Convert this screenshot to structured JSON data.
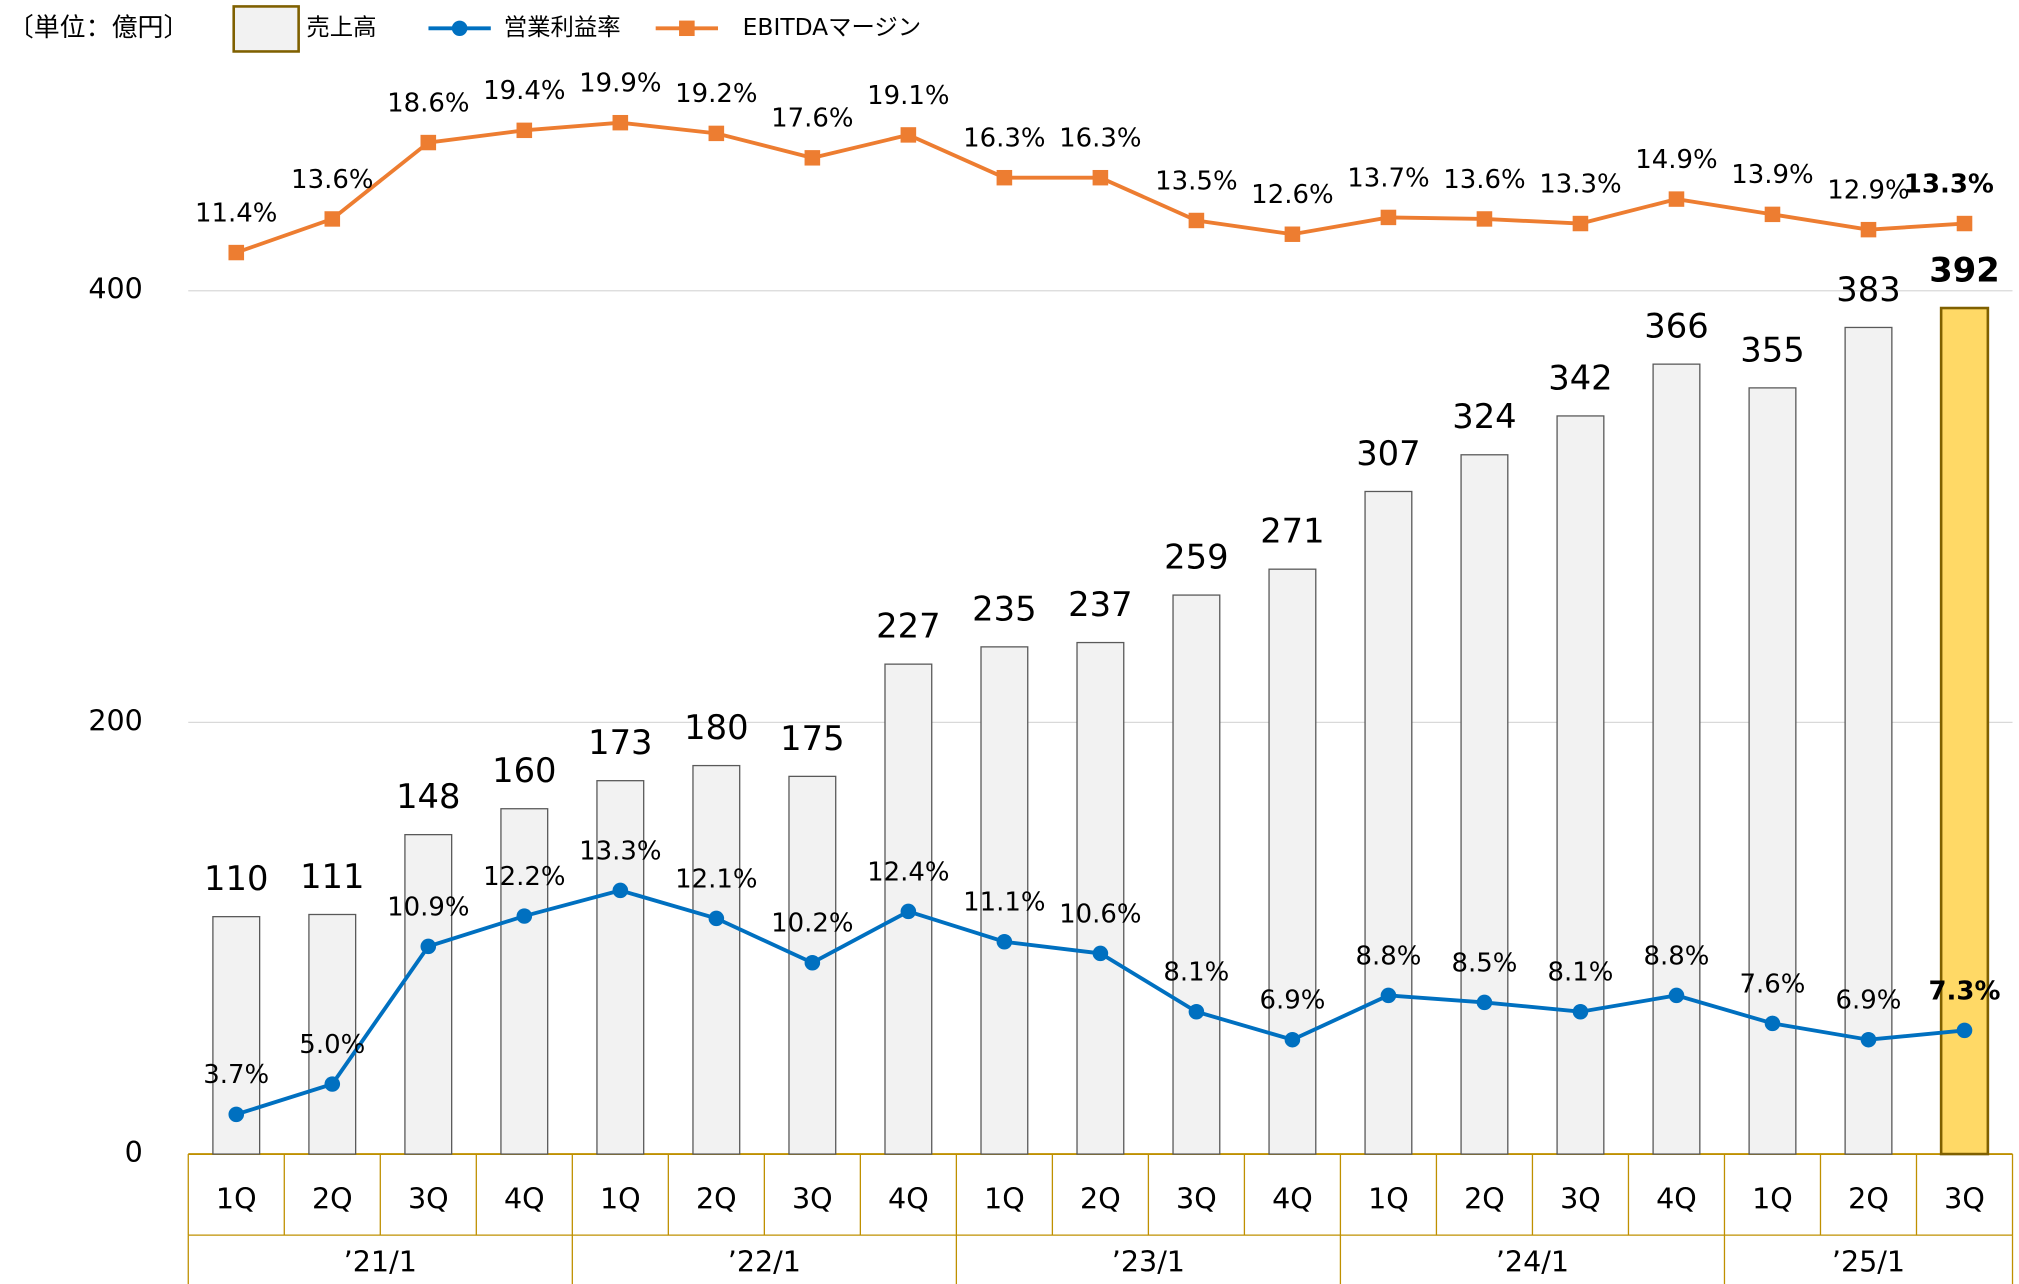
{
  "chart_data": {
    "type": "bar",
    "unit_label": "〔単位：億円〕",
    "categories": [
      "1Q",
      "2Q",
      "3Q",
      "4Q",
      "1Q",
      "2Q",
      "3Q",
      "4Q",
      "1Q",
      "2Q",
      "3Q",
      "4Q",
      "1Q",
      "2Q",
      "3Q",
      "4Q",
      "1Q",
      "2Q",
      "3Q"
    ],
    "groups": [
      {
        "label": "’21/1",
        "span": 4
      },
      {
        "label": "’22/1",
        "span": 4
      },
      {
        "label": "’23/1",
        "span": 4
      },
      {
        "label": "’24/1",
        "span": 4
      },
      {
        "label": "’25/1",
        "span": 3
      }
    ],
    "ylim": [
      0,
      400
    ],
    "yticks": [
      0,
      200,
      400
    ],
    "grid": true,
    "y2lim": [
      2,
      39
    ],
    "y3lim": [
      -47.6,
      8.9
    ],
    "highlight": {
      "index": 18,
      "color": "#ffd966"
    },
    "series": [
      {
        "name": "売上高",
        "type": "bar",
        "color": "#f2f2f2",
        "values": [
          110,
          111,
          148,
          160,
          173,
          180,
          175,
          227,
          235,
          237,
          259,
          271,
          307,
          324,
          342,
          366,
          355,
          383,
          392
        ]
      },
      {
        "name": "営業利益率",
        "type": "line",
        "axis": "y2",
        "color": "#0070c0",
        "values": [
          3.7,
          5.0,
          10.9,
          12.2,
          13.3,
          12.1,
          10.2,
          12.4,
          11.1,
          10.6,
          8.1,
          6.9,
          8.8,
          8.5,
          8.1,
          8.8,
          7.6,
          6.9,
          7.3
        ],
        "value_labels": [
          "3.7%",
          "5.0%",
          "10.9%",
          "12.2%",
          "13.3%",
          "12.1%",
          "10.2%",
          "12.4%",
          "11.1%",
          "10.6%",
          "8.1%",
          "6.9%",
          "8.8%",
          "8.5%",
          "8.1%",
          "8.8%",
          "7.6%",
          "6.9%",
          "7.3%"
        ]
      },
      {
        "name": "EBITDAマージン",
        "type": "line",
        "axis": "y3",
        "color": "#ed7d31",
        "values": [
          11.4,
          13.6,
          18.6,
          19.4,
          19.9,
          19.2,
          17.6,
          19.1,
          16.3,
          16.3,
          13.5,
          12.6,
          13.7,
          13.6,
          13.3,
          14.9,
          13.9,
          12.9,
          13.3
        ],
        "value_labels": [
          "11.4%",
          "13.6%",
          "18.6%",
          "19.4%",
          "19.9%",
          "19.2%",
          "17.6%",
          "19.1%",
          "16.3%",
          "16.3%",
          "13.5%",
          "12.6%",
          "13.7%",
          "13.6%",
          "13.3%",
          "14.9%",
          "13.9%",
          "12.9%",
          "13.3%"
        ]
      }
    ]
  }
}
